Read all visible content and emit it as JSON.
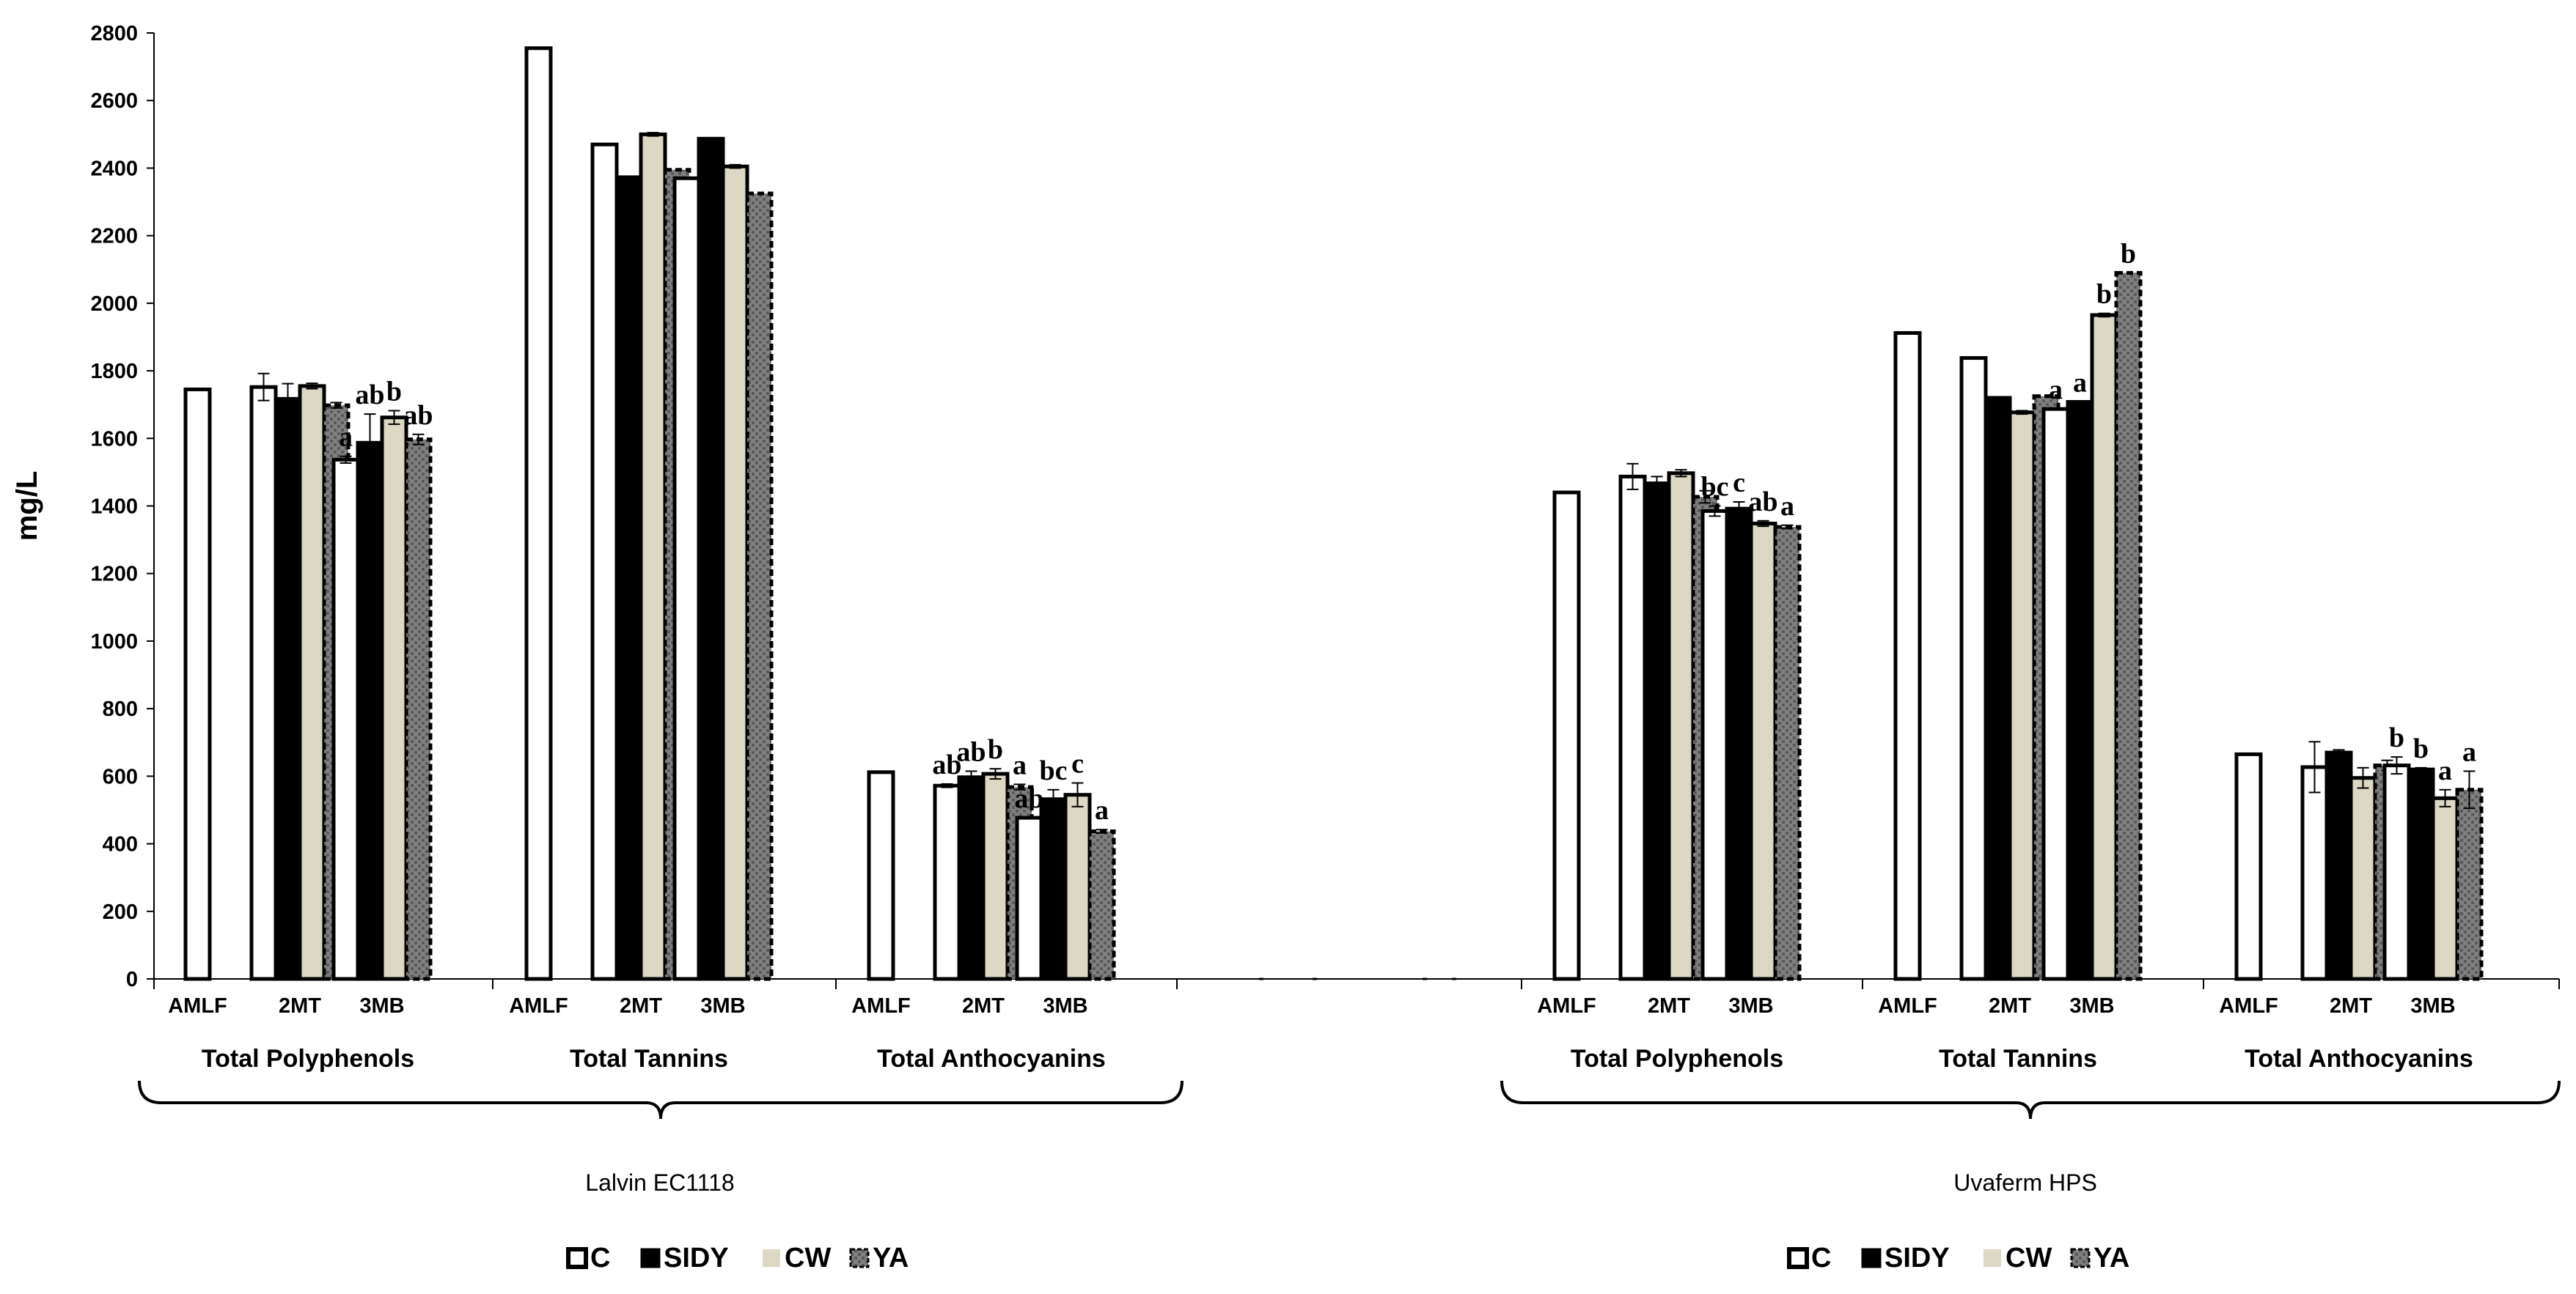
{
  "chart_data": {
    "type": "bar",
    "ylabel": "mg/L",
    "ylim": [
      0,
      2800
    ],
    "yticks": [
      0,
      200,
      400,
      600,
      800,
      1000,
      1200,
      1400,
      1600,
      1800,
      2000,
      2200,
      2400,
      2600,
      2800
    ],
    "grid": false,
    "series_names": [
      "C",
      "SIDY",
      "CW",
      "YA"
    ],
    "colors": {
      "C": "#ffffff",
      "SIDY": "#000000",
      "CW": "#ddd8c4",
      "YA": "#808080",
      "AMLF": "#ffffff",
      "stroke": "#000000"
    },
    "yeasts": [
      {
        "name": "Lalvin EC1118",
        "groups": [
          {
            "name": "Total Polyphenols",
            "AMLF": 1745,
            "sub": [
              {
                "label": "2MT",
                "values": [
                  1752,
                  1717,
                  1755,
                  1698
                ],
                "errors": [
                  40,
                  45,
                  8,
                  8
                ],
                "letters": [
                  "",
                  "",
                  "",
                  ""
                ]
              },
              {
                "label": "3MB",
                "values": [
                  1537,
                  1587,
                  1662,
                  1597
                ],
                "errors": [
                  10,
                  85,
                  20,
                  15
                ],
                "letters": [
                  "a",
                  "ab",
                  "b",
                  "ab"
                ]
              }
            ]
          },
          {
            "name": "Total Tannins",
            "AMLF": 2755,
            "sub": [
              {
                "label": "2MT",
                "values": [
                  2470,
                  2373,
                  2500,
                  2395
                ],
                "errors": [
                  0,
                  0,
                  5,
                  0
                ],
                "letters": [
                  "",
                  "",
                  "",
                  ""
                ]
              },
              {
                "label": "3MB",
                "values": [
                  2370,
                  2487,
                  2405,
                  2325
                ],
                "errors": [
                  0,
                  0,
                  5,
                  0
                ],
                "letters": [
                  "",
                  "",
                  "",
                  ""
                ]
              }
            ]
          },
          {
            "name": "Total Anthocyanins",
            "AMLF": 612,
            "sub": [
              {
                "label": "2MT",
                "values": [
                  572,
                  597,
                  607,
                  568
                ],
                "errors": [
                  5,
                  18,
                  15,
                  8
                ],
                "letters": [
                  "ab",
                  "ab",
                  "b",
                  "a"
                ]
              },
              {
                "label": "3MB",
                "values": [
                  477,
                  532,
                  545,
                  437
                ],
                "errors": [
                  0,
                  28,
                  35,
                  5
                ],
                "letters": [
                  "ab",
                  "bc",
                  "c",
                  "a"
                ]
              }
            ]
          }
        ]
      },
      {
        "name": "Uvaferm HPS",
        "groups": [
          {
            "name": "Total Polyphenols",
            "AMLF": 1440,
            "sub": [
              {
                "label": "2MT",
                "values": [
                  1487,
                  1467,
                  1497,
                  1427
                ],
                "errors": [
                  38,
                  20,
                  10,
                  18
                ],
                "letters": [
                  "",
                  "",
                  "",
                  ""
                ]
              },
              {
                "label": "3MB",
                "values": [
                  1385,
                  1392,
                  1348,
                  1338
                ],
                "errors": [
                  15,
                  20,
                  8,
                  5
                ],
                "letters": [
                  "bc",
                  "c",
                  "ab",
                  "a"
                ]
              }
            ]
          },
          {
            "name": "Total Tannins",
            "AMLF": 1912,
            "sub": [
              {
                "label": "2MT",
                "values": [
                  1838,
                  1720,
                  1677,
                  1725
                ],
                "errors": [
                  0,
                  0,
                  5,
                  0
                ],
                "letters": [
                  "",
                  "",
                  "",
                  ""
                ]
              },
              {
                "label": "3MB",
                "values": [
                  1687,
                  1708,
                  1965,
                  2090
                ],
                "errors": [
                  0,
                  0,
                  5,
                  0
                ],
                "letters": [
                  "a",
                  "a",
                  "b",
                  "b"
                ]
              }
            ]
          },
          {
            "name": "Total Anthocyanins",
            "AMLF": 665,
            "sub": [
              {
                "label": "2MT",
                "values": [
                  627,
                  670,
                  595,
                  632
                ],
                "errors": [
                  75,
                  8,
                  30,
                  15
                ],
                "letters": [
                  "",
                  "",
                  "",
                  ""
                ]
              },
              {
                "label": "3MB",
                "values": [
                  632,
                  620,
                  535,
                  560
                ],
                "errors": [
                  25,
                  5,
                  25,
                  55
                ],
                "letters": [
                  "b",
                  "b",
                  "a",
                  "a"
                ]
              }
            ]
          }
        ]
      }
    ],
    "middle_gap_values": [
      0,
      0,
      0,
      0
    ],
    "legend": [
      {
        "marker": "C",
        "label": "C"
      },
      {
        "marker": "SIDY",
        "label": "SIDY"
      },
      {
        "marker": "CW",
        "label": "CW"
      },
      {
        "marker": "YA",
        "label": "YA"
      }
    ]
  }
}
